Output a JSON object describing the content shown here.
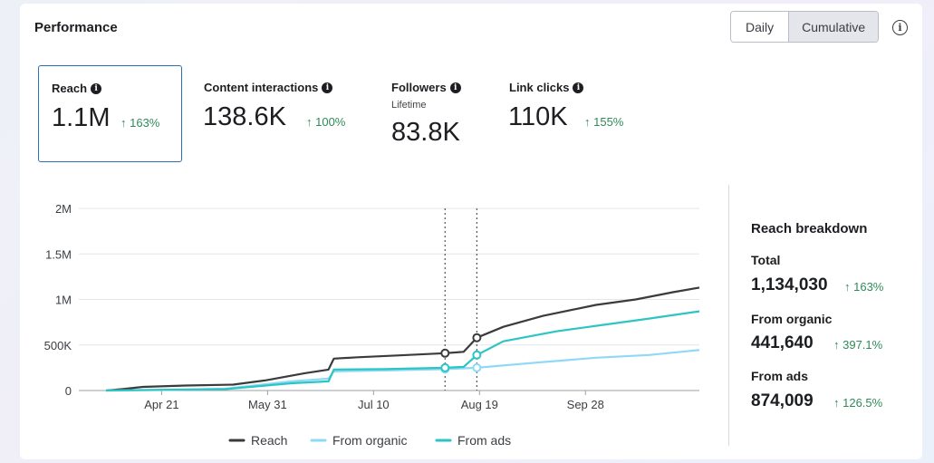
{
  "header": {
    "title": "Performance",
    "toggle": [
      "Daily",
      "Cumulative"
    ],
    "selected_toggle": "Cumulative",
    "info_icon": "info-icon"
  },
  "metrics": [
    {
      "label": "Reach",
      "value": "1.1M",
      "change": "↑ 163%",
      "sub": ""
    },
    {
      "label": "Content interactions",
      "value": "138.6K",
      "change": "↑ 100%",
      "sub": ""
    },
    {
      "label": "Followers",
      "value": "83.8K",
      "change": "",
      "sub": "Lifetime"
    },
    {
      "label": "Link clicks",
      "value": "110K",
      "change": "↑ 155%",
      "sub": ""
    }
  ],
  "breakdown": {
    "title": "Reach breakdown",
    "items": [
      {
        "label": "Total",
        "value": "1,134,030",
        "change": "↑ 163%"
      },
      {
        "label": "From organic",
        "value": "441,640",
        "change": "↑ 397.1%"
      },
      {
        "label": "From ads",
        "value": "874,009",
        "change": "↑ 126.5%"
      }
    ]
  },
  "colors": {
    "reach": "#3a3b3d",
    "organic": "#8ed8f8",
    "ads": "#2cc5c4",
    "positive": "#2f8a59",
    "selected_border": "#2d6fb0"
  },
  "chart_data": {
    "type": "line",
    "title": "",
    "xlabel": "",
    "ylabel": "",
    "y_ticks": [
      "0",
      "500K",
      "1M",
      "1.5M",
      "2M"
    ],
    "ylim": [
      0,
      2000000
    ],
    "x_tick_labels": [
      "Apr 21",
      "May 31",
      "Jul 10",
      "Aug 19",
      "Sep 28"
    ],
    "x_ticks_day": [
      21,
      61,
      101,
      141,
      181
    ],
    "xlim_day": [
      0,
      224
    ],
    "markers_day": [
      128,
      140
    ],
    "legend_position": "bottom",
    "series": [
      {
        "name": "Reach",
        "color": "#3a3b3d",
        "points": [
          [
            0,
            0
          ],
          [
            6,
            15000
          ],
          [
            14,
            40000
          ],
          [
            30,
            55000
          ],
          [
            48,
            65000
          ],
          [
            60,
            110000
          ],
          [
            75,
            190000
          ],
          [
            84,
            230000
          ],
          [
            86,
            350000
          ],
          [
            95,
            365000
          ],
          [
            110,
            385000
          ],
          [
            128,
            410000
          ],
          [
            135,
            425000
          ],
          [
            140,
            580000
          ],
          [
            150,
            700000
          ],
          [
            165,
            820000
          ],
          [
            185,
            940000
          ],
          [
            200,
            1000000
          ],
          [
            214,
            1080000
          ],
          [
            224,
            1130000
          ]
        ]
      },
      {
        "name": "From organic",
        "color": "#8ed8f8",
        "points": [
          [
            0,
            0
          ],
          [
            20,
            5000
          ],
          [
            45,
            20000
          ],
          [
            70,
            100000
          ],
          [
            84,
            130000
          ],
          [
            86,
            210000
          ],
          [
            105,
            220000
          ],
          [
            128,
            235000
          ],
          [
            140,
            250000
          ],
          [
            160,
            300000
          ],
          [
            185,
            360000
          ],
          [
            205,
            390000
          ],
          [
            224,
            445000
          ]
        ]
      },
      {
        "name": "From ads",
        "color": "#2cc5c4",
        "points": [
          [
            0,
            0
          ],
          [
            20,
            8000
          ],
          [
            45,
            15000
          ],
          [
            70,
            80000
          ],
          [
            84,
            100000
          ],
          [
            86,
            230000
          ],
          [
            105,
            235000
          ],
          [
            128,
            250000
          ],
          [
            135,
            260000
          ],
          [
            140,
            390000
          ],
          [
            150,
            540000
          ],
          [
            170,
            650000
          ],
          [
            190,
            730000
          ],
          [
            205,
            790000
          ],
          [
            224,
            870000
          ]
        ]
      }
    ]
  }
}
